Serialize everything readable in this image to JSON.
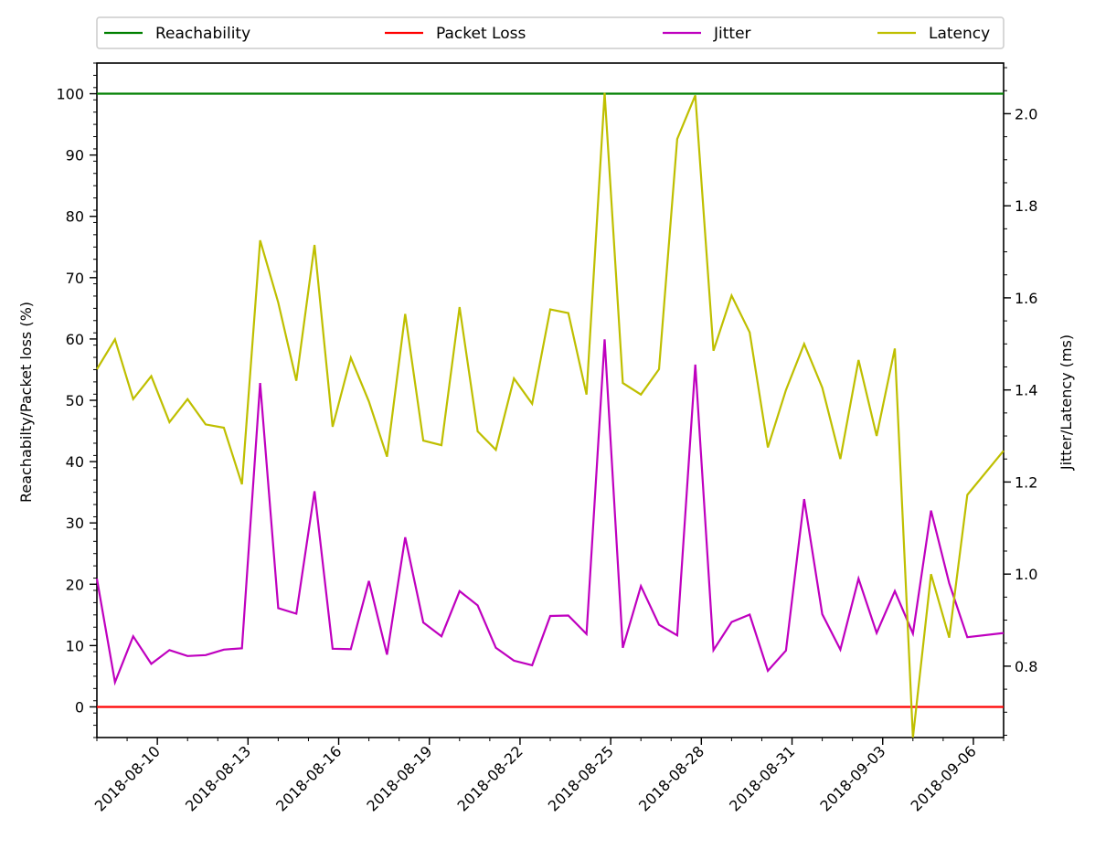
{
  "chart_data": {
    "type": "line",
    "x": [
      "2018-08-08",
      "2018-08-09",
      "2018-08-10",
      "2018-08-11",
      "2018-08-12",
      "2018-08-13",
      "2018-08-14",
      "2018-08-15",
      "2018-08-16",
      "2018-08-17",
      "2018-08-18",
      "2018-08-19",
      "2018-08-20",
      "2018-08-21",
      "2018-08-22",
      "2018-08-23",
      "2018-08-24",
      "2018-08-25",
      "2018-08-26",
      "2018-08-27",
      "2018-08-28",
      "2018-08-29",
      "2018-08-30",
      "2018-08-31",
      "2018-09-01",
      "2018-09-02",
      "2018-09-03",
      "2018-09-04",
      "2018-09-05",
      "2018-09-06",
      "2018-09-07"
    ],
    "x_axis": {
      "type": "date",
      "range": [
        "2018-08-08",
        "2018-09-07"
      ],
      "ticks": [
        "2018-08-10",
        "2018-08-13",
        "2018-08-16",
        "2018-08-19",
        "2018-08-22",
        "2018-08-25",
        "2018-08-28",
        "2018-08-31",
        "2018-09-03",
        "2018-09-06"
      ]
    },
    "y_left": {
      "label": "Reachabilty/Packet loss (%)",
      "range": [
        -5,
        105
      ],
      "ticks": [
        0,
        10,
        20,
        30,
        40,
        50,
        60,
        70,
        80,
        90,
        100
      ]
    },
    "y_right": {
      "label": "Jitter/Latency (ms)",
      "range": [
        0.645,
        2.11
      ],
      "ticks": [
        0.8,
        1.0,
        1.2,
        1.4,
        1.6,
        1.8,
        2.0
      ]
    },
    "legend_position": "top",
    "grid": false,
    "series": [
      {
        "name": "Reachability",
        "axis": "left",
        "color": "#008000",
        "x": [
          "2018-08-08",
          "2018-09-07"
        ],
        "values": [
          100,
          100
        ]
      },
      {
        "name": "Packet Loss",
        "axis": "left",
        "color": "#ff0000",
        "x": [
          "2018-08-08",
          "2018-09-07"
        ],
        "values": [
          0,
          0
        ]
      },
      {
        "name": "Jitter",
        "axis": "right",
        "color": "#bf00bf",
        "values": [
          0.99,
          0.765,
          0.865,
          0.805,
          0.835,
          0.822,
          0.824,
          0.836,
          0.839,
          1.415,
          0.926,
          0.914,
          1.18,
          0.838,
          0.837,
          0.985,
          0.825,
          1.08,
          0.895,
          0.865,
          0.963,
          0.932,
          0.84,
          0.812,
          0.802,
          0.909,
          0.91,
          0.87,
          1.51,
          0.84,
          0.974,
          0.89,
          0.867,
          1.455,
          0.835,
          0.896,
          0.912,
          0.79,
          0.834,
          1.163,
          0.913,
          0.836,
          0.99,
          0.872,
          0.963,
          0.871,
          1.138,
          0.98,
          0.863,
          0.872
        ],
        "x": [
          "2018-08-08",
          "2018-08-08.6",
          "2018-08-09.2",
          "2018-08-09.8",
          "2018-08-10.4",
          "2018-08-11",
          "2018-08-11.6",
          "2018-08-12.2",
          "2018-08-12.8",
          "2018-08-13.4",
          "2018-08-14",
          "2018-08-14.6",
          "2018-08-15.2",
          "2018-08-15.8",
          "2018-08-16.4",
          "2018-08-17",
          "2018-08-17.6",
          "2018-08-18.2",
          "2018-08-18.8",
          "2018-08-19.4",
          "2018-08-20",
          "2018-08-20.6",
          "2018-08-21.2",
          "2018-08-21.8",
          "2018-08-22.4",
          "2018-08-23",
          "2018-08-23.6",
          "2018-08-24.2",
          "2018-08-24.8",
          "2018-08-25.4",
          "2018-08-26",
          "2018-08-26.6",
          "2018-08-27.2",
          "2018-08-27.8",
          "2018-08-28.4",
          "2018-08-29",
          "2018-08-29.6",
          "2018-08-30.2",
          "2018-08-30.8",
          "2018-08-31.4",
          "2018-09-01",
          "2018-09-01.6",
          "2018-09-02.2",
          "2018-09-02.8",
          "2018-09-03.4",
          "2018-09-04",
          "2018-09-04.6",
          "2018-09-05.2",
          "2018-09-05.8",
          "2018-09-07"
        ]
      },
      {
        "name": "Latency",
        "axis": "right",
        "color": "#bfbf00",
        "values": [
          1.445,
          1.51,
          1.38,
          1.43,
          1.33,
          1.38,
          1.325,
          1.318,
          1.195,
          1.725,
          1.59,
          1.42,
          1.715,
          1.32,
          1.47,
          1.375,
          1.255,
          1.565,
          1.29,
          1.28,
          1.58,
          1.31,
          1.27,
          1.425,
          1.37,
          1.575,
          1.567,
          1.39,
          2.045,
          1.415,
          1.39,
          1.445,
          1.945,
          2.04,
          1.485,
          1.605,
          1.525,
          1.275,
          1.4,
          1.5,
          1.405,
          1.25,
          1.465,
          1.3,
          1.49,
          0.645,
          1.0,
          0.862,
          1.172,
          1.268
        ],
        "x": [
          "2018-08-08",
          "2018-08-08.6",
          "2018-08-09.2",
          "2018-08-09.8",
          "2018-08-10.4",
          "2018-08-11",
          "2018-08-11.6",
          "2018-08-12.2",
          "2018-08-12.8",
          "2018-08-13.4",
          "2018-08-14",
          "2018-08-14.6",
          "2018-08-15.2",
          "2018-08-15.8",
          "2018-08-16.4",
          "2018-08-17",
          "2018-08-17.6",
          "2018-08-18.2",
          "2018-08-18.8",
          "2018-08-19.4",
          "2018-08-20",
          "2018-08-20.6",
          "2018-08-21.2",
          "2018-08-21.8",
          "2018-08-22.4",
          "2018-08-23",
          "2018-08-23.6",
          "2018-08-24.2",
          "2018-08-24.8",
          "2018-08-25.4",
          "2018-08-26",
          "2018-08-26.6",
          "2018-08-27.2",
          "2018-08-27.8",
          "2018-08-28.4",
          "2018-08-29",
          "2018-08-29.6",
          "2018-08-30.2",
          "2018-08-30.8",
          "2018-08-31.4",
          "2018-09-01",
          "2018-09-01.6",
          "2018-09-02.2",
          "2018-09-02.8",
          "2018-09-03.4",
          "2018-09-04",
          "2018-09-04.6",
          "2018-09-05.2",
          "2018-09-05.8",
          "2018-09-07"
        ]
      }
    ]
  }
}
